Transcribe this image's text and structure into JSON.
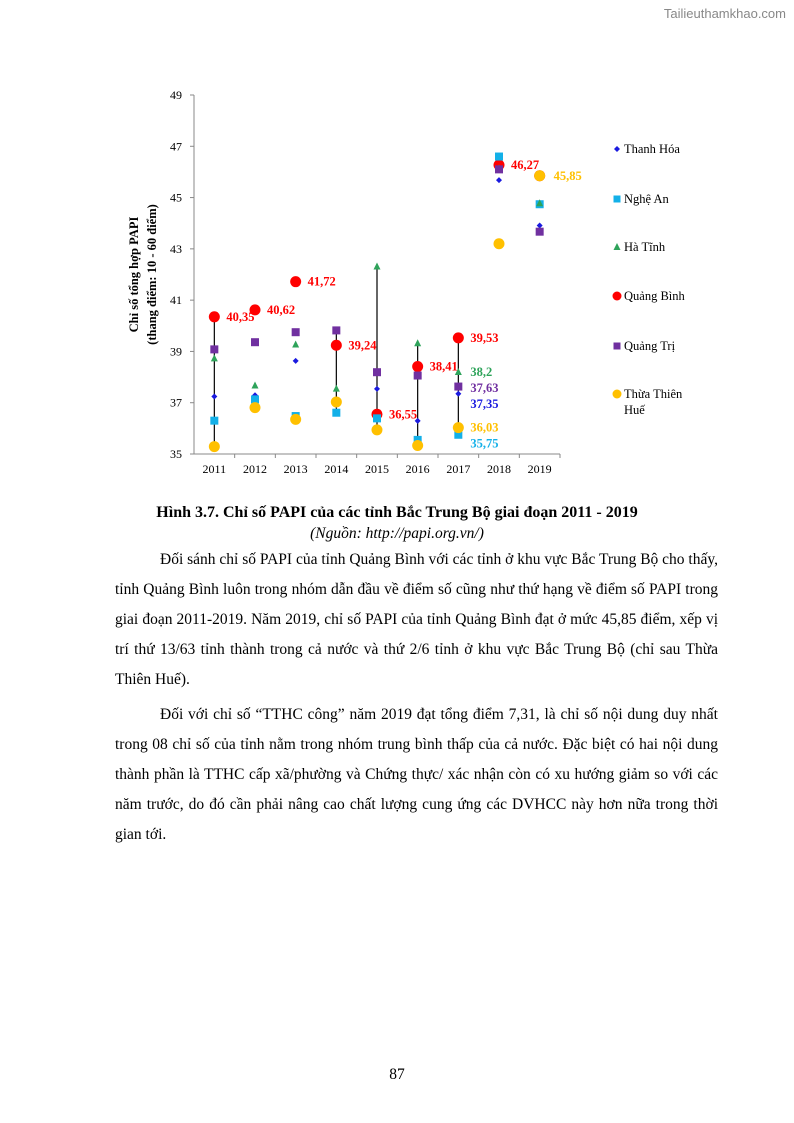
{
  "watermark": "Tailieuthamkhao.com",
  "chart_data": {
    "type": "scatter",
    "ylabel_line1": "Chỉ số tổng hợp PAPI",
    "ylabel_line2": "(thang điểm: 10 - 60 điểm)",
    "ylim": [
      35,
      49
    ],
    "yticks": [
      "35",
      "37",
      "39",
      "41",
      "43",
      "45",
      "47",
      "49"
    ],
    "categories": [
      "2011",
      "2012",
      "2013",
      "2014",
      "2015",
      "2016",
      "2017",
      "2018",
      "2019"
    ],
    "grid": false,
    "legend_position": "right",
    "hilo_lines_years": [
      "2011",
      "2014",
      "2015",
      "2016",
      "2017"
    ],
    "series": [
      {
        "name": "Thanh Hóa",
        "marker": "diamond",
        "color": "#1a1adf",
        "values": [
          37.24,
          37.29,
          38.63,
          36.91,
          37.54,
          36.29,
          37.35,
          45.68,
          43.91
        ]
      },
      {
        "name": "Nghệ An",
        "marker": "square",
        "color": "#13b0e8",
        "values": [
          36.3,
          37.13,
          36.48,
          36.61,
          36.39,
          35.55,
          35.75,
          46.6,
          44.74
        ]
      },
      {
        "name": "Hà Tĩnh",
        "marker": "triangle",
        "color": "#2ea35a",
        "values": [
          38.73,
          37.67,
          39.27,
          37.55,
          42.31,
          39.32,
          38.2,
          46.14,
          44.78
        ]
      },
      {
        "name": "Quảng Bình",
        "marker": "circle",
        "color": "#ff0000",
        "values": [
          40.35,
          40.62,
          41.72,
          39.24,
          36.55,
          38.41,
          39.53,
          46.27,
          45.85
        ]
      },
      {
        "name": "Quảng Trị",
        "marker": "square",
        "color": "#7030a0",
        "values": [
          39.08,
          39.36,
          39.75,
          39.82,
          38.19,
          38.06,
          37.63,
          46.1,
          43.67
        ]
      },
      {
        "name": "Thừa Thiên Huế",
        "marker": "circle",
        "color": "#ffc000",
        "values": [
          35.29,
          36.81,
          36.35,
          37.03,
          35.94,
          35.33,
          36.03,
          43.2,
          45.85
        ]
      }
    ],
    "data_labels": [
      {
        "year": "2011",
        "series": 3,
        "text": "40,35"
      },
      {
        "year": "2012",
        "series": 3,
        "text": "40,62"
      },
      {
        "year": "2013",
        "series": 3,
        "text": "41,72"
      },
      {
        "year": "2014",
        "series": 3,
        "text": "39,24"
      },
      {
        "year": "2015",
        "series": 3,
        "text": "36,55"
      },
      {
        "year": "2016",
        "series": 3,
        "text": "38,41"
      },
      {
        "year": "2017",
        "series": 3,
        "text": "39,53"
      },
      {
        "year": "2017",
        "series": 2,
        "text": "38,2"
      },
      {
        "year": "2017",
        "series": 4,
        "text": "37,63"
      },
      {
        "year": "2017",
        "series": 0,
        "text": "37,35"
      },
      {
        "year": "2017",
        "series": 5,
        "text": "36,03"
      },
      {
        "year": "2017",
        "series": 1,
        "text": "35,75"
      },
      {
        "year": "2018",
        "series": 3,
        "text": "46,27"
      },
      {
        "year": "2019",
        "series": 5,
        "text": "45,85"
      }
    ]
  },
  "caption": "Hình 3.7. Chỉ số PAPI của các tỉnh Bắc Trung Bộ giai đoạn 2011 - 2019",
  "source": "(Nguồn: http://papi.org.vn/)",
  "paragraphs": [
    "Đối sánh chỉ số PAPI của tỉnh Quảng Bình với các tỉnh ở khu vực Bắc Trung Bộ cho thấy, tỉnh Quảng Bình luôn trong nhóm dẫn đầu về điểm số cũng như thứ hạng về điểm số PAPI trong giai đoạn 2011-2019. Năm 2019, chỉ số PAPI của tỉnh Quảng Bình đạt ở mức 45,85 điểm, xếp vị trí thứ 13/63 tỉnh thành trong cả nước và thứ 2/6 tỉnh ở khu vực Bắc Trung Bộ (chỉ sau Thừa Thiên Huế).",
    "Đối với chỉ số “TTHC công” năm 2019 đạt tổng điểm 7,31, là chỉ số nội dung duy nhất trong 08 chỉ số của tỉnh nằm trong nhóm trung bình thấp của cả nước. Đặc biệt có hai nội dung thành phần là TTHC cấp xã/phường và Chứng thực/ xác nhận còn có xu hướng giảm so với các năm trước, do đó cần phải nâng cao chất lượng cung ứng các DVHCC này hơn nữa trong thời gian tới."
  ],
  "page_number": "87"
}
